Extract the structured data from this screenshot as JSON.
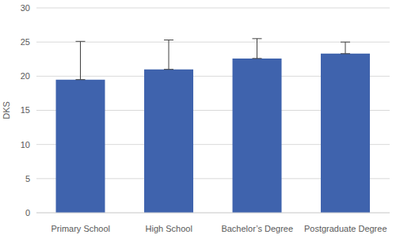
{
  "chart_data": {
    "type": "bar",
    "y_label": "DKS",
    "categories": [
      "Primary School",
      "High School",
      "Bachelor’s Degree",
      "Postgraduate Degree"
    ],
    "values": [
      19.5,
      21.0,
      22.6,
      23.3
    ],
    "errors": [
      5.6,
      4.3,
      2.9,
      1.7
    ],
    "color": "#3f63ad",
    "ylim": [
      0,
      30
    ],
    "yticks": [
      0,
      5,
      10,
      15,
      20,
      25,
      30
    ],
    "grid": true
  }
}
